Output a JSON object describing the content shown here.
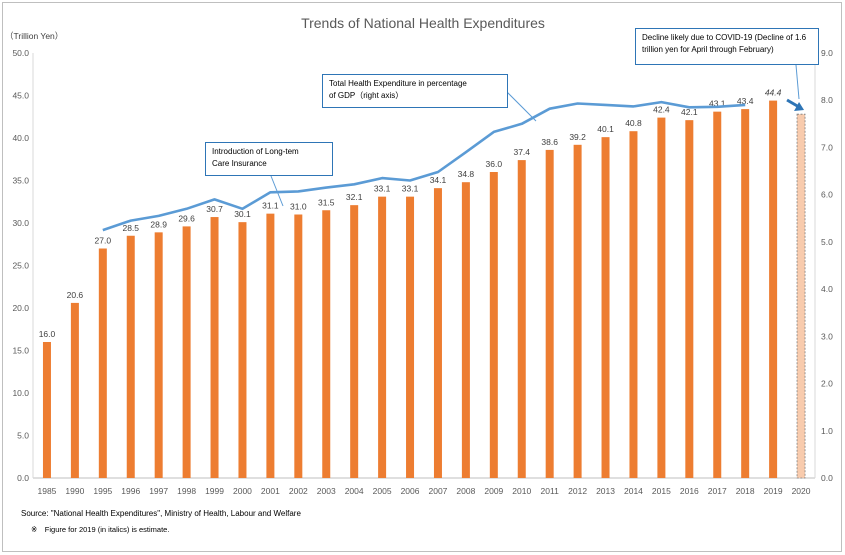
{
  "chart_data": {
    "type": "bar",
    "title": "Trends of National Health Expenditures",
    "y_unit_label": "（Trillion Yen）",
    "ylim": [
      0,
      50
    ],
    "yticks": [
      "0.0",
      "5.0",
      "10.0",
      "15.0",
      "20.0",
      "25.0",
      "30.0",
      "35.0",
      "40.0",
      "45.0",
      "50.0"
    ],
    "y2lim": [
      0,
      9
    ],
    "y2ticks": [
      "0.0",
      "1.0",
      "2.0",
      "3.0",
      "4.0",
      "5.0",
      "6.0",
      "7.0",
      "8.0",
      "9.0"
    ],
    "categories": [
      "1985",
      "1990",
      "1995",
      "1996",
      "1997",
      "1998",
      "1999",
      "2000",
      "2001",
      "2002",
      "2003",
      "2004",
      "2005",
      "2006",
      "2007",
      "2008",
      "2009",
      "2010",
      "2011",
      "2012",
      "2013",
      "2014",
      "2015",
      "2016",
      "2017",
      "2018",
      "2019",
      "2020"
    ],
    "series": [
      {
        "axis": "left",
        "color": "#ed7d31",
        "values": [
          16.0,
          20.6,
          27.0,
          28.5,
          28.9,
          29.6,
          30.7,
          30.1,
          31.1,
          31.0,
          31.5,
          32.1,
          33.1,
          33.1,
          34.1,
          34.8,
          36.0,
          37.4,
          38.6,
          39.2,
          40.1,
          40.8,
          42.4,
          42.1,
          43.1,
          43.4,
          44.4,
          42.8
        ],
        "labels": [
          "16.0",
          "20.6",
          "27.0",
          "28.5",
          "28.9",
          "29.6",
          "30.7",
          "30.1",
          "31.1",
          "31.0",
          "31.5",
          "32.1",
          "33.1",
          "33.1",
          "34.1",
          "34.8",
          "36.0",
          "37.4",
          "38.6",
          "39.2",
          "40.1",
          "40.8",
          "42.4",
          "42.1",
          "43.1",
          "43.4",
          "44.4",
          ""
        ]
      },
      {
        "name": "Total Health Expenditure in percentage of GDP（right axis）",
        "axis": "right",
        "type": "line",
        "color": "#5b9bd5",
        "values": [
          null,
          null,
          5.25,
          5.45,
          5.55,
          5.7,
          5.9,
          5.7,
          6.05,
          6.07,
          6.15,
          6.22,
          6.35,
          6.3,
          6.48,
          6.9,
          7.33,
          7.5,
          7.82,
          7.93,
          7.9,
          7.87,
          7.96,
          7.85,
          7.86,
          7.9,
          null,
          null
        ]
      }
    ],
    "estimate_category": "2019",
    "decline_category": "2020",
    "decline_color": "#f8cbad",
    "grid": false,
    "annotations": {
      "ltc": "Introduction of Long-tem\nCare Insurance",
      "gdp_series": "Total Health Expenditure in percentage\nof GDP（right axis）",
      "covid": "Decline likely due to COVID-19 (Decline of 1.6\ntrillion yen for April through February)"
    }
  },
  "footer": {
    "source": "Source: \"National Health Expenditures\", Ministry of Health, Labour and Welfare",
    "note": "※　Figure for 2019 (in italics) is estimate."
  }
}
